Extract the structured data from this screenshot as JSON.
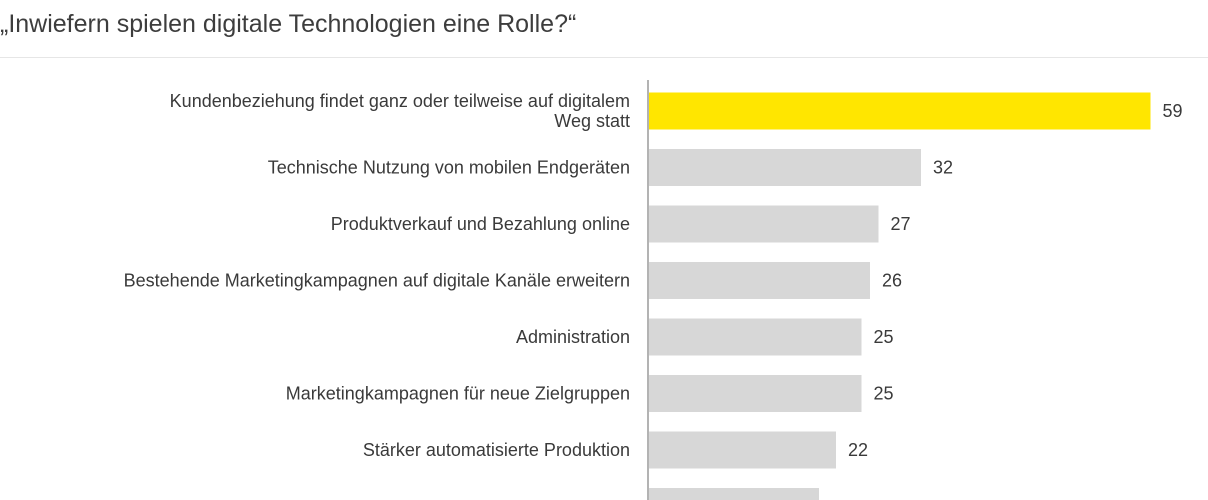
{
  "chart_data": {
    "type": "bar",
    "orientation": "horizontal",
    "title": "„Inwiefern spielen digitale Technologien eine Rolle?“",
    "categories": [
      [
        "Kundenbeziehung findet ganz oder teilweise auf digitalem",
        "Weg statt"
      ],
      [
        "Technische Nutzung von mobilen Endgeräten"
      ],
      [
        "Produktverkauf und Bezahlung online"
      ],
      [
        "Bestehende Marketingkampagnen auf digitale Kanäle erweitern"
      ],
      [
        "Administration"
      ],
      [
        "Marketingkampagnen für neue Zielgruppen"
      ],
      [
        "Stärker automatisierte Produktion"
      ],
      [
        ""
      ]
    ],
    "values": [
      59,
      32,
      27,
      26,
      25,
      25,
      22,
      20
    ],
    "value_labels": [
      "59",
      "32",
      "27",
      "26",
      "25",
      "25",
      "22",
      ""
    ],
    "highlight_index": 0,
    "xlabel": "",
    "ylabel": "",
    "xlim": [
      0,
      70
    ],
    "colors": {
      "highlight": "#ffe600",
      "default": "#d7d7d7",
      "axis": "#9a9a9a",
      "text": "#3a3a3a"
    }
  }
}
